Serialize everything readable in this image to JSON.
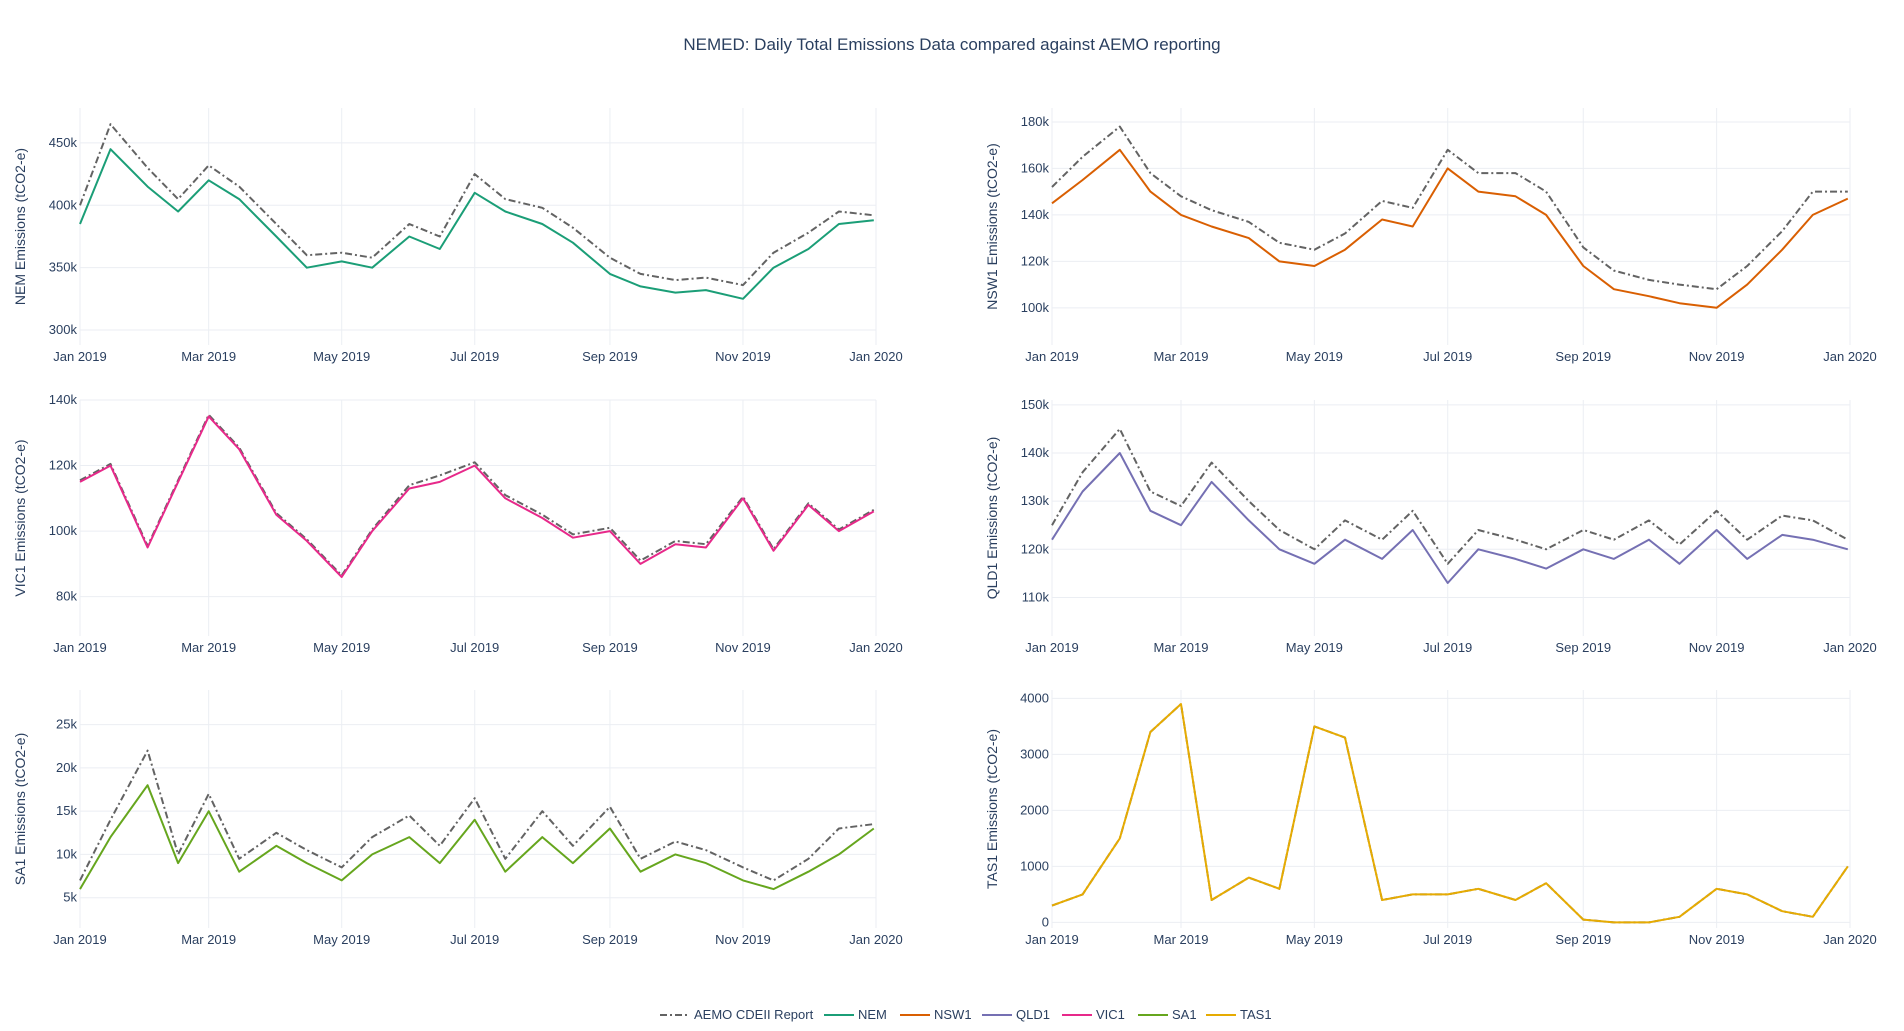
{
  "title": "NEMED: Daily Total Emissions Data compared against AEMO reporting",
  "x_axis": {
    "ticks": [
      "Jan 2019",
      "Mar 2019",
      "May 2019",
      "Jul 2019",
      "Sep 2019",
      "Nov 2019",
      "Jan 2020"
    ],
    "tick_dates": [
      "2019-01-01",
      "2019-03-01",
      "2019-05-01",
      "2019-07-01",
      "2019-09-01",
      "2019-11-01",
      "2020-01-01"
    ],
    "range": [
      "2019-01-01",
      "2020-01-01"
    ]
  },
  "legend": [
    {
      "label": "AEMO CDEII Report",
      "color": "#636363",
      "dash": true
    },
    {
      "label": "NEM",
      "color": "#1b9e77"
    },
    {
      "label": "NSW1",
      "color": "#d95f02"
    },
    {
      "label": "QLD1",
      "color": "#7570b3"
    },
    {
      "label": "VIC1",
      "color": "#e7298a"
    },
    {
      "label": "SA1",
      "color": "#66a61e"
    },
    {
      "label": "TAS1",
      "color": "#e6ab02"
    }
  ],
  "chart_data": [
    {
      "type": "line",
      "region": "NEM",
      "ylabel": "NEM Emissions (tCO2-e)",
      "color": "#1b9e77",
      "ylim": [
        288000,
        478000
      ],
      "yticks": [
        300000,
        350000,
        400000,
        450000
      ],
      "ytick_labels": [
        "300k",
        "350k",
        "400k",
        "450k"
      ],
      "x": [
        "2019-01-01",
        "2019-01-15",
        "2019-02-01",
        "2019-02-15",
        "2019-03-01",
        "2019-03-15",
        "2019-04-01",
        "2019-04-15",
        "2019-05-01",
        "2019-05-15",
        "2019-06-01",
        "2019-06-15",
        "2019-07-01",
        "2019-07-15",
        "2019-08-01",
        "2019-08-15",
        "2019-09-01",
        "2019-09-15",
        "2019-10-01",
        "2019-10-15",
        "2019-11-01",
        "2019-11-15",
        "2019-12-01",
        "2019-12-15",
        "2019-12-31"
      ],
      "series": [
        {
          "name": "NEM",
          "values": [
            385000,
            445000,
            415000,
            395000,
            420000,
            405000,
            375000,
            350000,
            355000,
            350000,
            375000,
            365000,
            410000,
            395000,
            385000,
            370000,
            345000,
            335000,
            330000,
            332000,
            325000,
            350000,
            365000,
            385000,
            388000
          ]
        },
        {
          "name": "AEMO CDEII Report",
          "values": [
            400000,
            465000,
            430000,
            405000,
            432000,
            415000,
            385000,
            360000,
            362000,
            358000,
            385000,
            375000,
            425000,
            405000,
            398000,
            382000,
            358000,
            345000,
            340000,
            342000,
            336000,
            362000,
            378000,
            395000,
            392000
          ]
        }
      ]
    },
    {
      "type": "line",
      "region": "NSW1",
      "ylabel": "NSW1 Emissions (tCO2-e)",
      "color": "#d95f02",
      "ylim": [
        84000,
        186000
      ],
      "yticks": [
        100000,
        120000,
        140000,
        160000,
        180000
      ],
      "ytick_labels": [
        "100k",
        "120k",
        "140k",
        "160k",
        "180k"
      ],
      "x": [
        "2019-01-01",
        "2019-01-15",
        "2019-02-01",
        "2019-02-15",
        "2019-03-01",
        "2019-03-15",
        "2019-04-01",
        "2019-04-15",
        "2019-05-01",
        "2019-05-15",
        "2019-06-01",
        "2019-06-15",
        "2019-07-01",
        "2019-07-15",
        "2019-08-01",
        "2019-08-15",
        "2019-09-01",
        "2019-09-15",
        "2019-10-01",
        "2019-10-15",
        "2019-11-01",
        "2019-11-15",
        "2019-12-01",
        "2019-12-15",
        "2019-12-31"
      ],
      "series": [
        {
          "name": "NSW1",
          "values": [
            145000,
            155000,
            168000,
            150000,
            140000,
            135000,
            130000,
            120000,
            118000,
            125000,
            138000,
            135000,
            160000,
            150000,
            148000,
            140000,
            118000,
            108000,
            105000,
            102000,
            100000,
            110000,
            125000,
            140000,
            147000
          ]
        },
        {
          "name": "AEMO CDEII Report",
          "values": [
            152000,
            165000,
            178000,
            158000,
            148000,
            142000,
            137000,
            128000,
            125000,
            132000,
            146000,
            143000,
            168000,
            158000,
            158000,
            150000,
            126000,
            116000,
            112000,
            110000,
            108000,
            118000,
            133000,
            150000,
            150000
          ]
        }
      ]
    },
    {
      "type": "line",
      "region": "VIC1",
      "ylabel": "VIC1 Emissions (tCO2-e)",
      "color": "#e7298a",
      "ylim": [
        68000,
        140000
      ],
      "yticks": [
        80000,
        100000,
        120000,
        140000
      ],
      "ytick_labels": [
        "80k",
        "100k",
        "120k",
        "140k"
      ],
      "x": [
        "2019-01-01",
        "2019-01-15",
        "2019-02-01",
        "2019-02-15",
        "2019-03-01",
        "2019-03-15",
        "2019-04-01",
        "2019-04-15",
        "2019-05-01",
        "2019-05-15",
        "2019-06-01",
        "2019-06-15",
        "2019-07-01",
        "2019-07-15",
        "2019-08-01",
        "2019-08-15",
        "2019-09-01",
        "2019-09-15",
        "2019-10-01",
        "2019-10-15",
        "2019-11-01",
        "2019-11-15",
        "2019-12-01",
        "2019-12-15",
        "2019-12-31"
      ],
      "series": [
        {
          "name": "VIC1",
          "values": [
            115000,
            120000,
            95000,
            115000,
            135000,
            125000,
            105000,
            97000,
            86000,
            100000,
            113000,
            115000,
            120000,
            110000,
            104000,
            98000,
            100000,
            90000,
            96000,
            95000,
            110000,
            94000,
            108000,
            100000,
            106000
          ]
        },
        {
          "name": "AEMO CDEII Report",
          "values": [
            115500,
            120500,
            95500,
            115500,
            135500,
            125500,
            105500,
            97500,
            86500,
            100500,
            114000,
            117000,
            121000,
            111000,
            105000,
            99000,
            101000,
            91000,
            97000,
            96000,
            110500,
            94500,
            108500,
            100500,
            106500
          ]
        }
      ]
    },
    {
      "type": "line",
      "region": "QLD1",
      "ylabel": "QLD1 Emissions (tCO2-e)",
      "color": "#7570b3",
      "ylim": [
        102000,
        151000
      ],
      "yticks": [
        110000,
        120000,
        130000,
        140000,
        150000
      ],
      "ytick_labels": [
        "110k",
        "120k",
        "130k",
        "140k",
        "150k"
      ],
      "x": [
        "2019-01-01",
        "2019-01-15",
        "2019-02-01",
        "2019-02-15",
        "2019-03-01",
        "2019-03-15",
        "2019-04-01",
        "2019-04-15",
        "2019-05-01",
        "2019-05-15",
        "2019-06-01",
        "2019-06-15",
        "2019-07-01",
        "2019-07-15",
        "2019-08-01",
        "2019-08-15",
        "2019-09-01",
        "2019-09-15",
        "2019-10-01",
        "2019-10-15",
        "2019-11-01",
        "2019-11-15",
        "2019-12-01",
        "2019-12-15",
        "2019-12-31"
      ],
      "series": [
        {
          "name": "QLD1",
          "values": [
            122000,
            132000,
            140000,
            128000,
            125000,
            134000,
            126000,
            120000,
            117000,
            122000,
            118000,
            124000,
            113000,
            120000,
            118000,
            116000,
            120000,
            118000,
            122000,
            117000,
            124000,
            118000,
            123000,
            122000,
            120000
          ]
        },
        {
          "name": "AEMO CDEII Report",
          "values": [
            125000,
            136000,
            145000,
            132000,
            129000,
            138000,
            130000,
            124000,
            120000,
            126000,
            122000,
            128000,
            117000,
            124000,
            122000,
            120000,
            124000,
            122000,
            126000,
            121000,
            128000,
            122000,
            127000,
            126000,
            122000
          ]
        }
      ]
    },
    {
      "type": "line",
      "region": "SA1",
      "ylabel": "SA1 Emissions (tCO2-e)",
      "color": "#66a61e",
      "ylim": [
        1500,
        29000
      ],
      "yticks": [
        5000,
        10000,
        15000,
        20000,
        25000
      ],
      "ytick_labels": [
        "5k",
        "10k",
        "15k",
        "20k",
        "25k"
      ],
      "x": [
        "2019-01-01",
        "2019-01-15",
        "2019-02-01",
        "2019-02-15",
        "2019-03-01",
        "2019-03-15",
        "2019-04-01",
        "2019-04-15",
        "2019-05-01",
        "2019-05-15",
        "2019-06-01",
        "2019-06-15",
        "2019-07-01",
        "2019-07-15",
        "2019-08-01",
        "2019-08-15",
        "2019-09-01",
        "2019-09-15",
        "2019-10-01",
        "2019-10-15",
        "2019-11-01",
        "2019-11-15",
        "2019-12-01",
        "2019-12-15",
        "2019-12-31"
      ],
      "series": [
        {
          "name": "SA1",
          "values": [
            6000,
            12000,
            18000,
            9000,
            15000,
            8000,
            11000,
            9000,
            7000,
            10000,
            12000,
            9000,
            14000,
            8000,
            12000,
            9000,
            13000,
            8000,
            10000,
            9000,
            7000,
            6000,
            8000,
            10000,
            13000
          ]
        },
        {
          "name": "AEMO CDEII Report",
          "values": [
            7000,
            14000,
            22000,
            10000,
            17000,
            9500,
            12500,
            10500,
            8500,
            12000,
            14500,
            11000,
            16500,
            9500,
            15000,
            11000,
            15500,
            9500,
            11500,
            10500,
            8500,
            7000,
            9500,
            13000,
            13500
          ]
        }
      ]
    },
    {
      "type": "line",
      "region": "TAS1",
      "ylabel": "TAS1 Emissions (tCO2-e)",
      "color": "#e6ab02",
      "ylim": [
        -100,
        4150
      ],
      "yticks": [
        0,
        1000,
        2000,
        3000,
        4000
      ],
      "ytick_labels": [
        "0",
        "1000",
        "2000",
        "3000",
        "4000"
      ],
      "x": [
        "2019-01-01",
        "2019-01-15",
        "2019-02-01",
        "2019-02-15",
        "2019-03-01",
        "2019-03-15",
        "2019-04-01",
        "2019-04-15",
        "2019-05-01",
        "2019-05-15",
        "2019-06-01",
        "2019-06-15",
        "2019-07-01",
        "2019-07-15",
        "2019-08-01",
        "2019-08-15",
        "2019-09-01",
        "2019-09-15",
        "2019-10-01",
        "2019-10-15",
        "2019-11-01",
        "2019-11-15",
        "2019-12-01",
        "2019-12-15",
        "2019-12-31"
      ],
      "series": [
        {
          "name": "TAS1",
          "values": [
            300,
            500,
            1500,
            3400,
            3900,
            400,
            800,
            600,
            3500,
            3300,
            400,
            500,
            500,
            600,
            400,
            700,
            50,
            0,
            0,
            100,
            600,
            500,
            200,
            100,
            1000
          ]
        },
        {
          "name": "AEMO CDEII Report",
          "values": [
            300,
            500,
            1500,
            3400,
            3900,
            400,
            800,
            600,
            3500,
            3300,
            400,
            500,
            500,
            600,
            400,
            700,
            50,
            0,
            0,
            100,
            600,
            500,
            200,
            100,
            1000
          ]
        }
      ]
    }
  ]
}
